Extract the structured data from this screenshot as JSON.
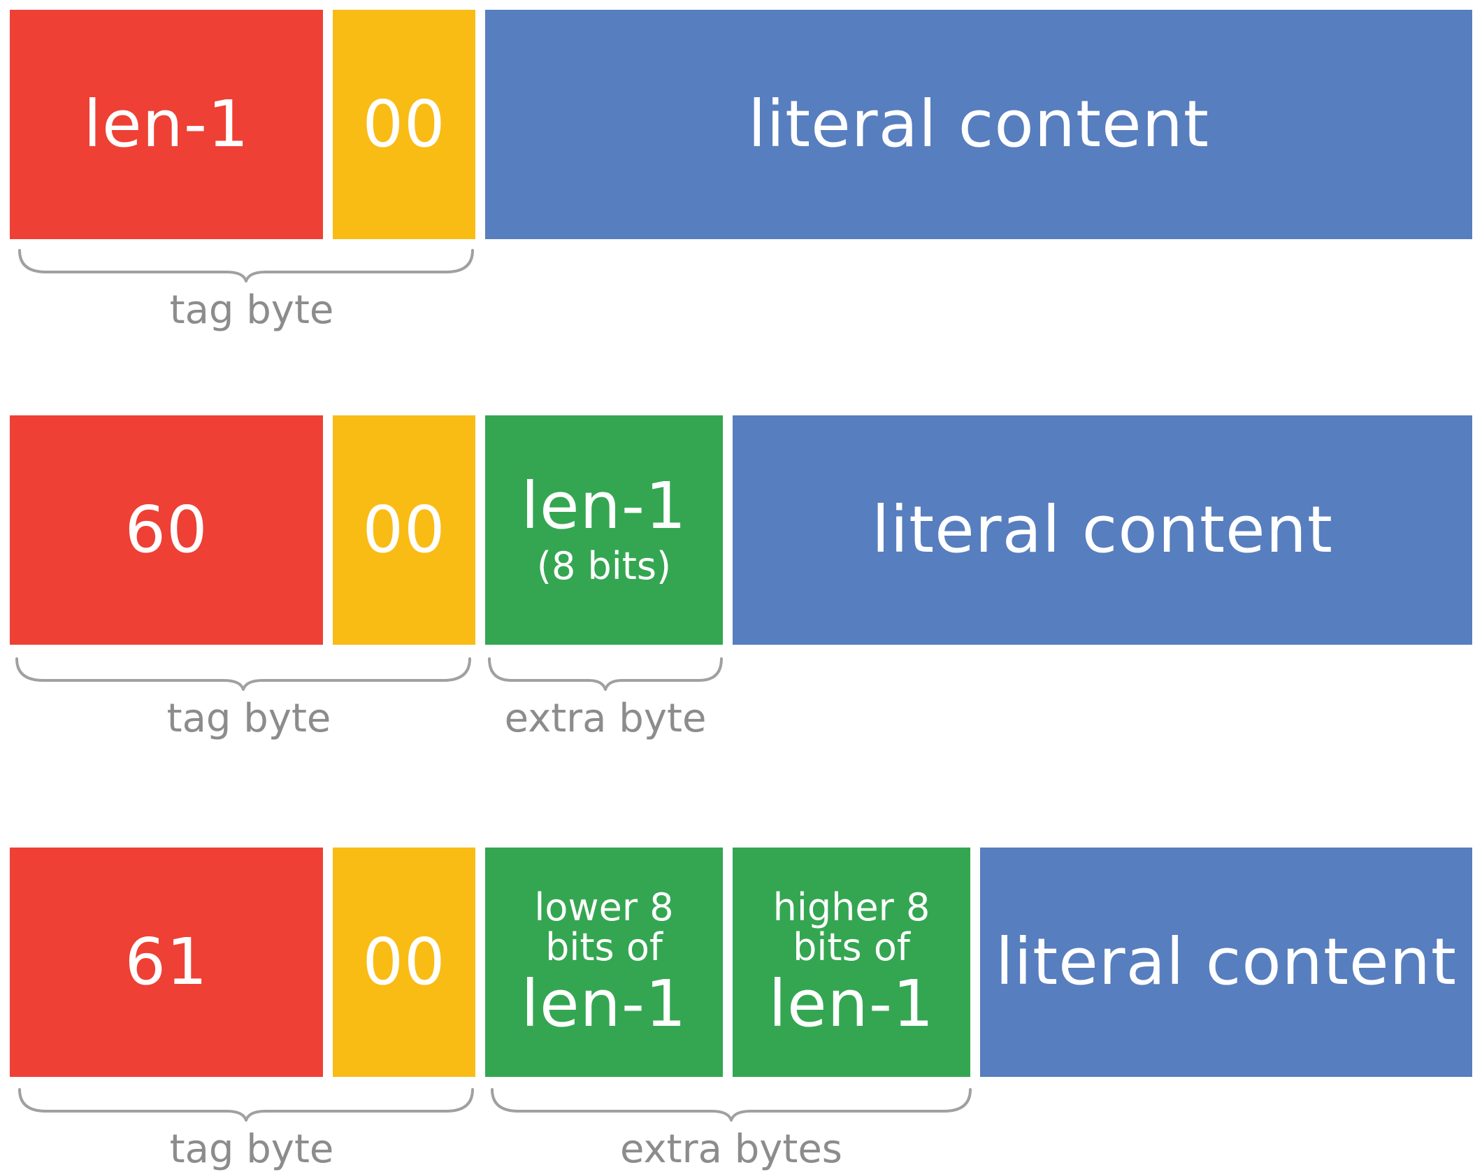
{
  "colors": {
    "tag_length": "#ee4035",
    "tag_type": "#f9bc15",
    "extra": "#34a651",
    "literal": "#577ebe",
    "label": "#8c8c8c"
  },
  "rows": [
    {
      "tag_length_label": "len-1",
      "tag_type_label": "00",
      "literal_label": "literal content",
      "tag_caption": "tag byte"
    },
    {
      "tag_length_label": "60",
      "tag_type_label": "00",
      "extra": [
        {
          "main": "len-1",
          "sub": "(8 bits)"
        }
      ],
      "literal_label": "literal content",
      "tag_caption": "tag byte",
      "extra_caption": "extra byte"
    },
    {
      "tag_length_label": "61",
      "tag_type_label": "00",
      "extra": [
        {
          "pre_line1": "lower 8",
          "pre_line2": "bits of",
          "main": "len-1"
        },
        {
          "pre_line1": "higher 8",
          "pre_line2": "bits of",
          "main": "len-1"
        }
      ],
      "literal_label": "literal content",
      "tag_caption": "tag byte",
      "extra_caption": "extra bytes"
    }
  ]
}
